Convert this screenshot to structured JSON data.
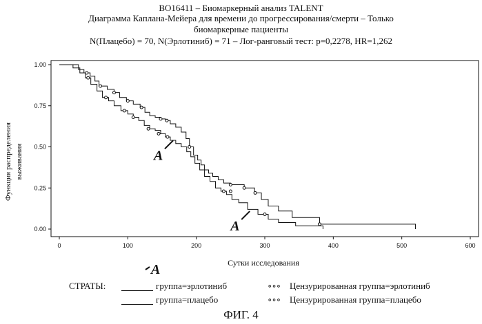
{
  "header": {
    "line1": "BO16411 – Биомаркерный анализ TALENT",
    "line2": "Диаграмма Каплана-Мейера для времени до прогрессирования/смерти – Только",
    "line3": "биомаркерные пациенты",
    "line4": "N(Плацебо) = 70, N(Эрлотиниб) = 71 – Лог-ранговый тест: p=0,2278, HR=1,262"
  },
  "chart_data": {
    "type": "line",
    "xlabel": "Сутки исследования",
    "ylabel_line1": "Функция распределения",
    "ylabel_line2": "выживания",
    "xlim": [
      0,
      600
    ],
    "ylim": [
      0,
      1
    ],
    "x_ticks": [
      "0",
      "100",
      "200",
      "300",
      "400",
      "500",
      "600"
    ],
    "y_ticks": [
      "0.00",
      "0.25",
      "0.50",
      "0.75",
      "1.00"
    ],
    "series": [
      {
        "key": "erlotinib",
        "x": [
          0,
          28,
          36,
          45,
          52,
          58,
          70,
          80,
          88,
          98,
          108,
          118,
          125,
          132,
          140,
          148,
          155,
          162,
          170,
          178,
          185,
          190,
          196,
          202,
          207,
          212,
          218,
          224,
          232,
          240,
          250,
          270,
          285,
          295,
          305,
          320,
          340,
          380,
          520
        ],
        "y": [
          1.0,
          0.97,
          0.95,
          0.93,
          0.9,
          0.87,
          0.85,
          0.83,
          0.8,
          0.78,
          0.76,
          0.74,
          0.71,
          0.69,
          0.68,
          0.67,
          0.66,
          0.64,
          0.62,
          0.59,
          0.55,
          0.5,
          0.45,
          0.42,
          0.39,
          0.36,
          0.34,
          0.32,
          0.3,
          0.28,
          0.27,
          0.25,
          0.22,
          0.18,
          0.14,
          0.11,
          0.07,
          0.03,
          0.0
        ],
        "censored": [
          [
            40,
            0.95
          ],
          [
            60,
            0.87
          ],
          [
            80,
            0.83
          ],
          [
            100,
            0.78
          ],
          [
            120,
            0.74
          ],
          [
            148,
            0.67
          ],
          [
            157,
            0.66
          ],
          [
            190,
            0.5
          ],
          [
            250,
            0.27
          ],
          [
            270,
            0.25
          ],
          [
            286,
            0.22
          ],
          [
            380,
            0.03
          ]
        ]
      },
      {
        "key": "placebo",
        "x": [
          0,
          20,
          30,
          38,
          46,
          55,
          63,
          72,
          80,
          90,
          100,
          108,
          116,
          124,
          132,
          140,
          148,
          155,
          162,
          170,
          178,
          186,
          192,
          198,
          205,
          212,
          220,
          228,
          236,
          244,
          252,
          262,
          275,
          290,
          305,
          320,
          345,
          385
        ],
        "y": [
          1.0,
          0.98,
          0.95,
          0.92,
          0.88,
          0.84,
          0.8,
          0.78,
          0.75,
          0.72,
          0.7,
          0.68,
          0.66,
          0.63,
          0.61,
          0.6,
          0.58,
          0.56,
          0.54,
          0.52,
          0.5,
          0.47,
          0.44,
          0.4,
          0.36,
          0.32,
          0.29,
          0.25,
          0.23,
          0.21,
          0.18,
          0.16,
          0.12,
          0.09,
          0.06,
          0.04,
          0.02,
          0.0
        ],
        "censored": [
          [
            42,
            0.92
          ],
          [
            68,
            0.8
          ],
          [
            95,
            0.72
          ],
          [
            108,
            0.68
          ],
          [
            130,
            0.61
          ],
          [
            145,
            0.58
          ],
          [
            158,
            0.56
          ],
          [
            240,
            0.23
          ],
          [
            250,
            0.23
          ],
          [
            300,
            0.09
          ]
        ]
      }
    ],
    "annotations": [
      {
        "text": "A",
        "x": 150,
        "y": 0.48
      },
      {
        "text": "A",
        "x": 262,
        "y": 0.05
      }
    ],
    "grid": false
  },
  "annotation_below_axis": "A",
  "legend": {
    "strata_label": "СТРАТЫ:",
    "erlotinib_line": "группа=эрлотиниб",
    "placebo_line": "группа=плацебо",
    "erlotinib_censored": "Цензурированная группа=эрлотиниб",
    "placebo_censored": "Цензурированная группа=плацебо",
    "censor_symbol": "∘∘∘"
  },
  "figure_caption": "ФИГ. 4"
}
